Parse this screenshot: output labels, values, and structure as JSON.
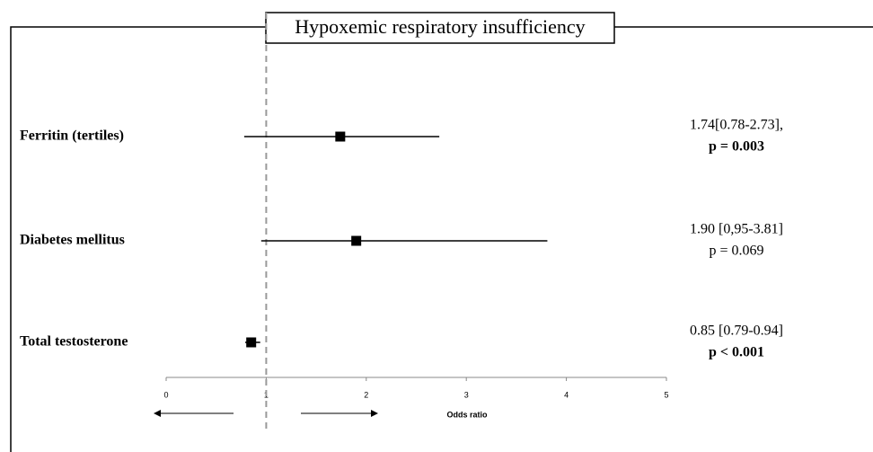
{
  "chart_data": {
    "type": "forest",
    "title": "Hypoxemic respiratory insufficiency",
    "x_label": "Odds ratio",
    "categories": [
      "Ferritin (tertiles)",
      "Diabetes mellitus",
      "Total testosterone"
    ],
    "values": [
      1.74,
      1.9,
      0.85
    ],
    "lower": [
      0.78,
      0.95,
      0.79
    ],
    "upper": [
      2.73,
      3.81,
      0.94
    ],
    "annotations": [
      {
        "estimate": "1.74[0.78-2.73],",
        "p": "p = 0.003",
        "p_bold": true
      },
      {
        "estimate": "1.90 [0,95-3.81]",
        "p": "p = 0.069",
        "p_bold": false
      },
      {
        "estimate": "0.85 [0.79-0.94]",
        "p": "p < 0.001",
        "p_bold": true
      }
    ],
    "reference_line": 1,
    "xlim": [
      0,
      5
    ],
    "xticks": [
      0,
      1,
      2,
      3,
      4,
      5
    ],
    "color": "#000000",
    "grid": false
  }
}
